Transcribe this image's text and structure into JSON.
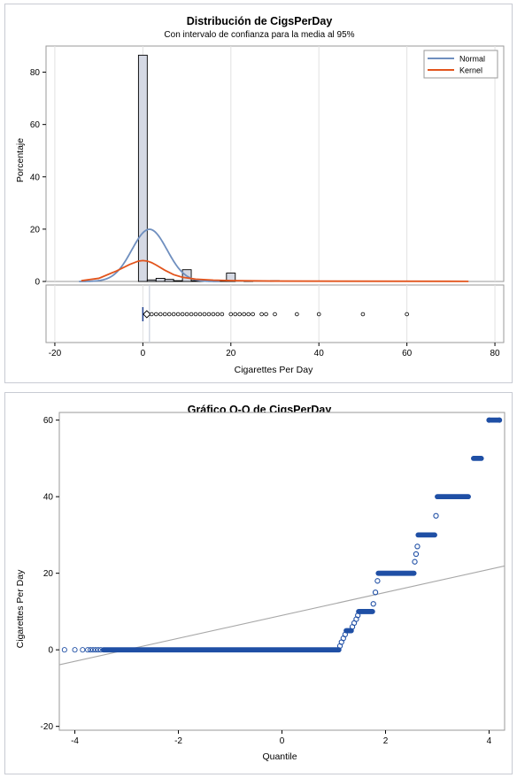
{
  "chart_data": [
    {
      "type": "bar",
      "title": "Distribución de CigsPerDay",
      "subtitle": "Con intervalo de confianza para la media al 95%",
      "xlabel": "Cigarettes Per Day",
      "ylabel": "Porcentaje",
      "xlim": [
        -22,
        82
      ],
      "ylim": [
        0,
        90
      ],
      "xticks": [
        -20,
        0,
        20,
        40,
        60,
        80
      ],
      "yticks": [
        0,
        20,
        40,
        60,
        80
      ],
      "bin_width": 2,
      "bins": [
        {
          "x": 0,
          "value": 86.5
        },
        {
          "x": 2,
          "value": 0.6
        },
        {
          "x": 4,
          "value": 1.2
        },
        {
          "x": 6,
          "value": 0.8
        },
        {
          "x": 8,
          "value": 0.3
        },
        {
          "x": 10,
          "value": 4.5
        },
        {
          "x": 12,
          "value": 0.3
        },
        {
          "x": 14,
          "value": 0.3
        },
        {
          "x": 16,
          "value": 0.2
        },
        {
          "x": 18,
          "value": 0.2
        },
        {
          "x": 20,
          "value": 3.2
        },
        {
          "x": 24,
          "value": 0.1
        },
        {
          "x": 30,
          "value": 0.3
        }
      ],
      "series": [
        {
          "name": "Normal",
          "color": "#6f8fbf",
          "mean": 1.5,
          "sd": 4.0
        },
        {
          "name": "Kernel",
          "color": "#e2541c",
          "x": [
            -14,
            -10,
            -6,
            -3,
            -1,
            0,
            1,
            2,
            3,
            5,
            7,
            9,
            12,
            16,
            20,
            30,
            45,
            74
          ],
          "values": [
            0.3,
            1.2,
            4.0,
            6.5,
            7.8,
            8.0,
            7.8,
            7.2,
            6.3,
            4.3,
            2.6,
            1.6,
            0.9,
            0.5,
            0.35,
            0.15,
            0.1,
            0.05
          ]
        }
      ],
      "legend": {
        "placement": "top-right",
        "items": [
          "Normal",
          "Kernel"
        ]
      },
      "grid": {
        "x": true,
        "y": false
      },
      "boxplot": {
        "mean": 0.9,
        "ci_line": 1.5,
        "outliers": [
          2,
          3,
          4,
          5,
          6,
          7,
          8,
          9,
          10,
          11,
          12,
          13,
          14,
          15,
          16,
          17,
          18,
          20,
          21,
          22,
          23,
          24,
          25,
          27,
          28,
          30,
          35,
          40,
          50,
          60
        ]
      }
    },
    {
      "type": "scatter",
      "title": "Gráfico Q-Q de CigsPerDay",
      "xlabel": "Quantile",
      "ylabel": "Cigarettes Per Day",
      "xlim": [
        -4.3,
        4.3
      ],
      "ylim": [
        -21,
        62
      ],
      "xticks": [
        -4,
        -2,
        0,
        2,
        4
      ],
      "yticks": [
        -20,
        0,
        20,
        40,
        60
      ],
      "reference_line": {
        "intercept": 9.0,
        "slope": 3.0,
        "color": "#a8a8a8"
      },
      "point_color": "#1f4fa5",
      "groups": [
        {
          "y": 0,
          "q_from": -3.45,
          "q_to": 1.1,
          "sparse": [
            -4.2,
            -4.0,
            -3.85,
            -3.75,
            -3.7,
            -3.65,
            -3.6,
            -3.55,
            -3.5
          ]
        },
        {
          "y": 1,
          "q_from": 1.11,
          "q_to": 1.13
        },
        {
          "y": 2,
          "q_from": 1.14,
          "q_to": 1.16
        },
        {
          "y": 3,
          "q_from": 1.17,
          "q_to": 1.2
        },
        {
          "y": 4,
          "q_from": 1.21,
          "q_to": 1.23
        },
        {
          "y": 5,
          "q_from": 1.24,
          "q_to": 1.34
        },
        {
          "y": 6,
          "q_from": 1.35,
          "q_to": 1.37
        },
        {
          "y": 7,
          "q_from": 1.38,
          "q_to": 1.41
        },
        {
          "y": 8,
          "q_from": 1.42,
          "q_to": 1.45
        },
        {
          "y": 9,
          "q_from": 1.46,
          "q_to": 1.47
        },
        {
          "y": 10,
          "q_from": 1.48,
          "q_to": 1.75
        },
        {
          "y": 12,
          "q_from": 1.76,
          "q_to": 1.77
        },
        {
          "y": 15,
          "q_from": 1.78,
          "q_to": 1.83
        },
        {
          "y": 18,
          "q_from": 1.84,
          "q_to": 1.85
        },
        {
          "y": 20,
          "q_from": 1.86,
          "q_to": 2.55
        },
        {
          "y": 23,
          "q_from": 2.56,
          "q_to": 2.57
        },
        {
          "y": 25,
          "q_from": 2.58,
          "q_to": 2.6
        },
        {
          "y": 27,
          "q_from": 2.61,
          "q_to": 2.62
        },
        {
          "y": 30,
          "q_from": 2.63,
          "q_to": 2.95
        },
        {
          "y": 35,
          "q_from": 2.96,
          "q_to": 2.99
        },
        {
          "y": 40,
          "q_from": 3.0,
          "q_to": 3.6
        },
        {
          "y": 50,
          "q_from": 3.7,
          "q_to": 3.85
        },
        {
          "y": 60,
          "q_from": 4.0,
          "q_to": 4.2,
          "sparse": [
            4.0,
            4.2
          ]
        }
      ]
    }
  ]
}
